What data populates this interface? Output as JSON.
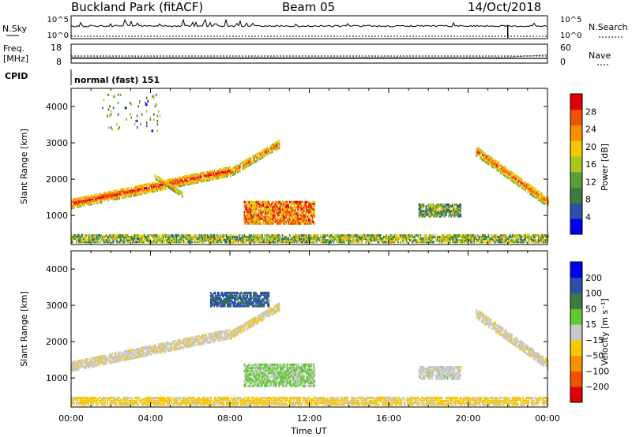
{
  "header": {
    "title": "Buckland Park (fitACF)",
    "beam": "Beam 05",
    "date": "14/Oct/2018"
  },
  "top_panels": {
    "nsky_label": "N.Sky",
    "nsky_ticks": [
      "10^5",
      "10^0"
    ],
    "nsearch_label": "N.Search",
    "nsearch_ticks": [
      "10^5",
      "10^0"
    ],
    "freq_label": "Freq.",
    "freq_unit": "[MHz]",
    "freq_ticks": [
      18,
      8
    ],
    "nave_label": "Nave",
    "nave_ticks": [
      60,
      0
    ],
    "cpid_label": "CPID",
    "cpid_value": "normal (fast) 151"
  },
  "time_axis": {
    "label": "Time UT",
    "ticks": [
      "00:00",
      "04:00",
      "08:00",
      "12:00",
      "16:00",
      "20:00",
      "00:00"
    ],
    "range_hours": [
      0,
      24
    ]
  },
  "colors": {
    "power": [
      "#0000ee",
      "#2a50a8",
      "#3c7c3c",
      "#5aa03a",
      "#a8c820",
      "#f8c800",
      "#f89000",
      "#f05000",
      "#e00000"
    ],
    "velocity": [
      "#e00000",
      "#f05000",
      "#f89000",
      "#f8c800",
      "#c8c8c8",
      "#60c830",
      "#3c7c3c",
      "#2a50a8",
      "#0000ee"
    ]
  },
  "chart_data": [
    {
      "type": "heatmap",
      "panel": "power",
      "xlabel": "",
      "ylabel": "Slant Range [km]",
      "x_range_hours": [
        0,
        24
      ],
      "ylim": [
        200,
        4500
      ],
      "yticks": [
        1000,
        2000,
        3000,
        4000
      ],
      "colorbar": {
        "label": "Power [dB]",
        "ticks": [
          4,
          8,
          12,
          16,
          20,
          24,
          28
        ],
        "range": [
          0,
          32
        ]
      },
      "features": [
        {
          "name": "near-range clutter",
          "t_start": 0.0,
          "t_end": 24.0,
          "range_low": 240,
          "range_high": 440,
          "power_db": 14
        },
        {
          "name": "morning scatter arc",
          "t_start": 0.0,
          "t_end": 8.0,
          "range_start": 1300,
          "range_end": 2200,
          "width_km": 260,
          "power_db": 24
        },
        {
          "name": "rising streak",
          "t_start": 8.0,
          "t_end": 10.5,
          "range_start": 2150,
          "range_end": 2950,
          "width_km": 200,
          "power_db": 22
        },
        {
          "name": "diagonal branch",
          "t_start": 4.2,
          "t_end": 5.6,
          "range_start": 2050,
          "range_end": 1550,
          "width_km": 120,
          "power_db": 20
        },
        {
          "name": "daytime blob",
          "t_start": 8.7,
          "t_end": 12.3,
          "range_low": 750,
          "range_high": 1350,
          "power_db": 24
        },
        {
          "name": "afternoon patches",
          "t_start": 17.5,
          "t_end": 19.6,
          "range_low": 950,
          "range_high": 1300,
          "power_db": 12
        },
        {
          "name": "evening arc",
          "t_start": 20.4,
          "t_end": 24.0,
          "range_start": 2750,
          "range_end": 1350,
          "width_km": 260,
          "power_db": 22
        },
        {
          "name": "sparse echoes",
          "t_start": 1.5,
          "t_end": 4.5,
          "range_low": 3300,
          "range_high": 4300,
          "power_db": 10
        }
      ]
    },
    {
      "type": "heatmap",
      "panel": "velocity",
      "xlabel": "Time UT",
      "ylabel": "Slant Range [km]",
      "x_range_hours": [
        0,
        24
      ],
      "ylim": [
        200,
        4500
      ],
      "yticks": [
        1000,
        2000,
        3000,
        4000
      ],
      "colorbar": {
        "label": "Velocity [m s⁻¹]",
        "ticks": [
          200,
          100,
          50,
          15,
          -15,
          -50,
          -100,
          -200
        ],
        "range": [
          -250,
          250
        ]
      },
      "features": [
        {
          "name": "near-range clutter",
          "t_start": 0.0,
          "t_end": 24.0,
          "range_low": 240,
          "range_high": 440,
          "velocity": -40
        },
        {
          "name": "morning scatter arc",
          "t_start": 0.0,
          "t_end": 8.0,
          "range_start": 1300,
          "range_end": 2200,
          "width_km": 260,
          "velocity": -10
        },
        {
          "name": "rising streak",
          "t_start": 8.0,
          "t_end": 10.5,
          "range_start": 2150,
          "range_end": 2950,
          "width_km": 200,
          "velocity": -20
        },
        {
          "name": "daytime blob",
          "t_start": 8.7,
          "t_end": 12.3,
          "range_low": 750,
          "range_high": 1350,
          "velocity": 35
        },
        {
          "name": "high-range patch",
          "t_start": 7.0,
          "t_end": 10.0,
          "range_low": 2950,
          "range_high": 3350,
          "velocity": 150
        },
        {
          "name": "afternoon patches",
          "t_start": 17.5,
          "t_end": 19.6,
          "range_low": 950,
          "range_high": 1300,
          "velocity": 0
        },
        {
          "name": "evening arc",
          "t_start": 20.4,
          "t_end": 24.0,
          "range_start": 2750,
          "range_end": 1350,
          "width_km": 260,
          "velocity": -10
        }
      ]
    }
  ]
}
